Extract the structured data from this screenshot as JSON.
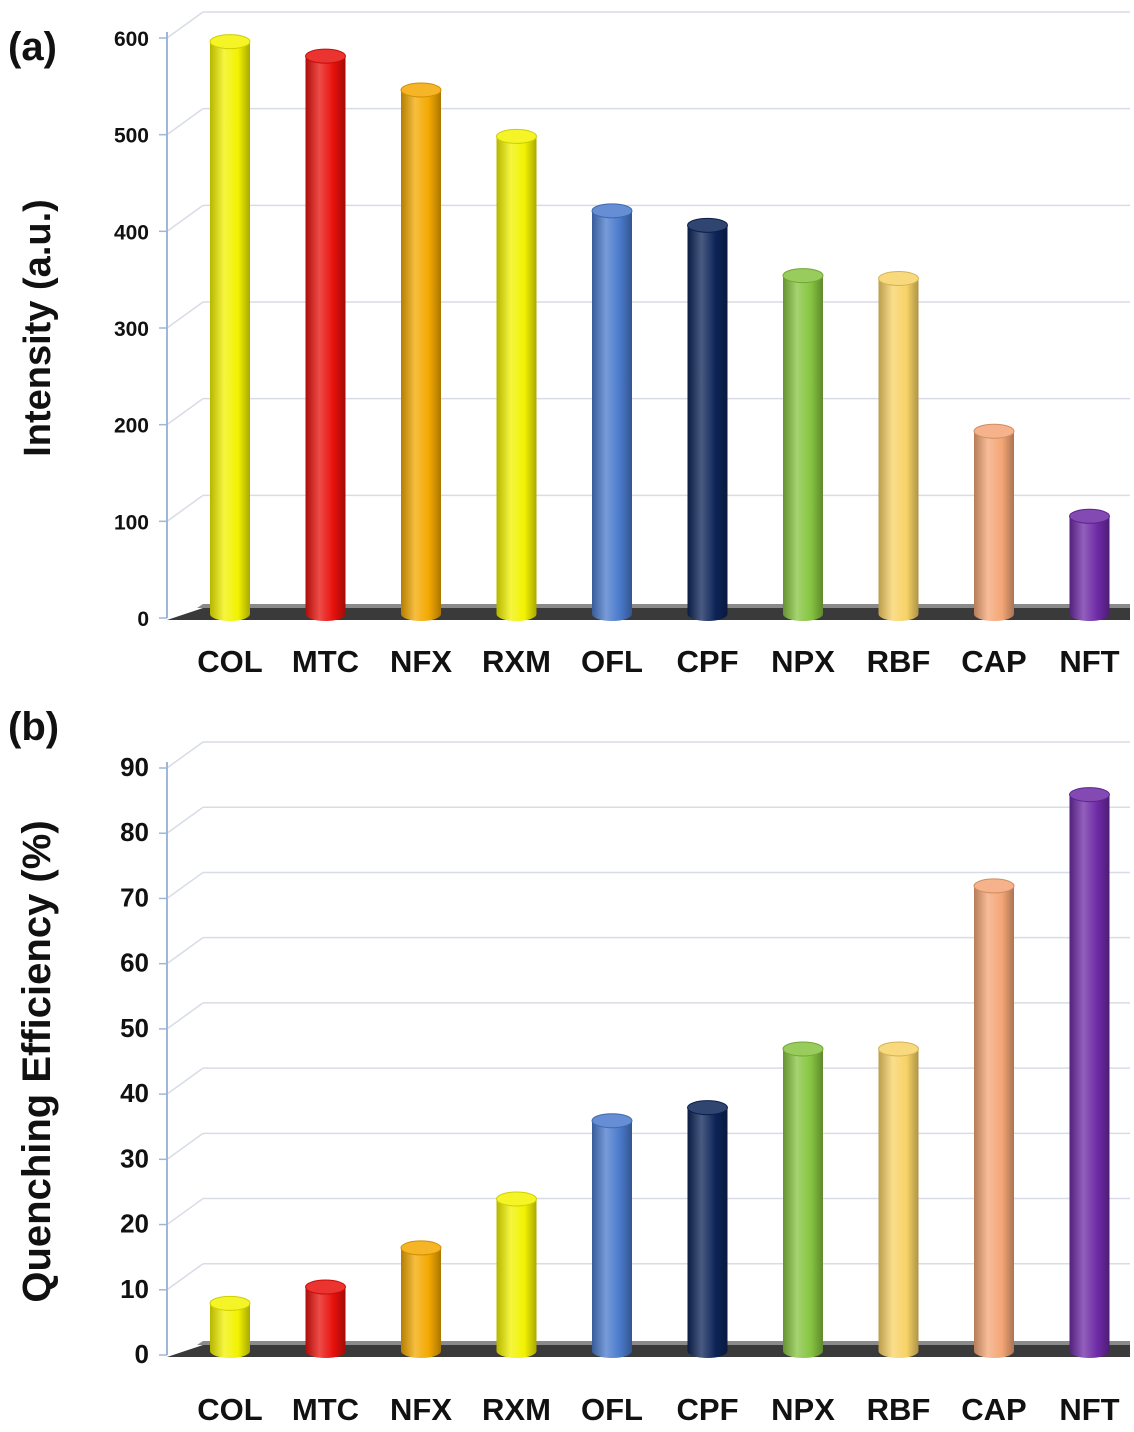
{
  "chart_data": [
    {
      "panel_label": "(a)",
      "type": "bar",
      "ylabel": "Intensity (a.u.)",
      "xlabel": "",
      "ylim": [
        0,
        600
      ],
      "yticks": [
        0,
        100,
        200,
        300,
        400,
        500,
        600
      ],
      "grid": true,
      "legend": "none",
      "categories": [
        "COL",
        "MTC",
        "NFX",
        "RXM",
        "OFL",
        "CPF",
        "NPX",
        "RBF",
        "CAP",
        "NFT"
      ],
      "values": [
        590,
        575,
        540,
        492,
        415,
        400,
        348,
        345,
        187,
        99
      ]
    },
    {
      "panel_label": "(b)",
      "type": "bar",
      "ylabel": "Quenching Efficiency (%)",
      "xlabel": "",
      "ylim": [
        0,
        90
      ],
      "yticks": [
        0,
        10,
        20,
        30,
        40,
        50,
        60,
        70,
        80,
        90
      ],
      "grid": true,
      "legend": "none",
      "categories": [
        "COL",
        "MTC",
        "NFX",
        "RXM",
        "OFL",
        "CPF",
        "NPX",
        "RBF",
        "CAP",
        "NFT"
      ],
      "values": [
        7,
        9.5,
        15.5,
        23,
        35,
        37,
        46,
        46,
        71,
        85
      ]
    }
  ],
  "bar_colors": [
    "#f2f200",
    "#e8100c",
    "#f3a800",
    "#f2f200",
    "#4a7acc",
    "#0d2458",
    "#86c440",
    "#f8d266",
    "#f4a676",
    "#6e2aa6"
  ]
}
